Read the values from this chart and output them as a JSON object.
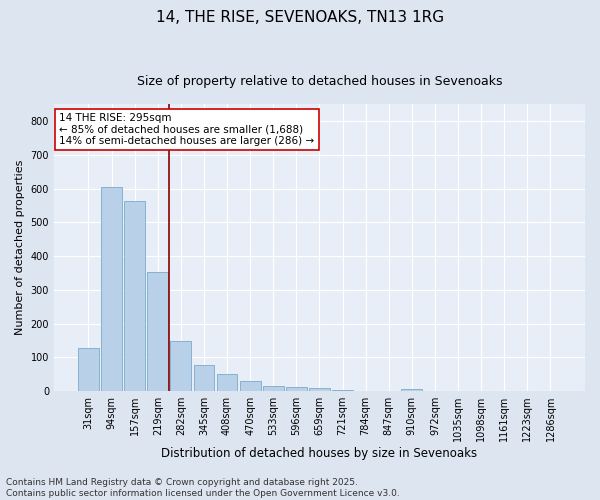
{
  "title": "14, THE RISE, SEVENOAKS, TN13 1RG",
  "subtitle": "Size of property relative to detached houses in Sevenoaks",
  "xlabel": "Distribution of detached houses by size in Sevenoaks",
  "ylabel": "Number of detached properties",
  "categories": [
    "31sqm",
    "94sqm",
    "157sqm",
    "219sqm",
    "282sqm",
    "345sqm",
    "408sqm",
    "470sqm",
    "533sqm",
    "596sqm",
    "659sqm",
    "721sqm",
    "784sqm",
    "847sqm",
    "910sqm",
    "972sqm",
    "1035sqm",
    "1098sqm",
    "1161sqm",
    "1223sqm",
    "1286sqm"
  ],
  "values": [
    128,
    606,
    563,
    352,
    150,
    78,
    50,
    30,
    14,
    12,
    10,
    4,
    0,
    0,
    6,
    0,
    0,
    0,
    0,
    0,
    0
  ],
  "bar_color": "#b8d0e8",
  "bar_edge_color": "#6a9fc0",
  "vline_color": "#8b0000",
  "annotation_text": "14 THE RISE: 295sqm\n← 85% of detached houses are smaller (1,688)\n14% of semi-detached houses are larger (286) →",
  "annotation_box_color": "white",
  "annotation_box_edge": "#cc0000",
  "background_color": "#dde5f0",
  "plot_bg_color": "#e8eef7",
  "grid_color": "white",
  "ylim": [
    0,
    850
  ],
  "yticks": [
    0,
    100,
    200,
    300,
    400,
    500,
    600,
    700,
    800
  ],
  "footnote": "Contains HM Land Registry data © Crown copyright and database right 2025.\nContains public sector information licensed under the Open Government Licence v3.0.",
  "title_fontsize": 11,
  "subtitle_fontsize": 9,
  "xlabel_fontsize": 8.5,
  "ylabel_fontsize": 8,
  "tick_fontsize": 7,
  "annotation_fontsize": 7.5,
  "footnote_fontsize": 6.5
}
